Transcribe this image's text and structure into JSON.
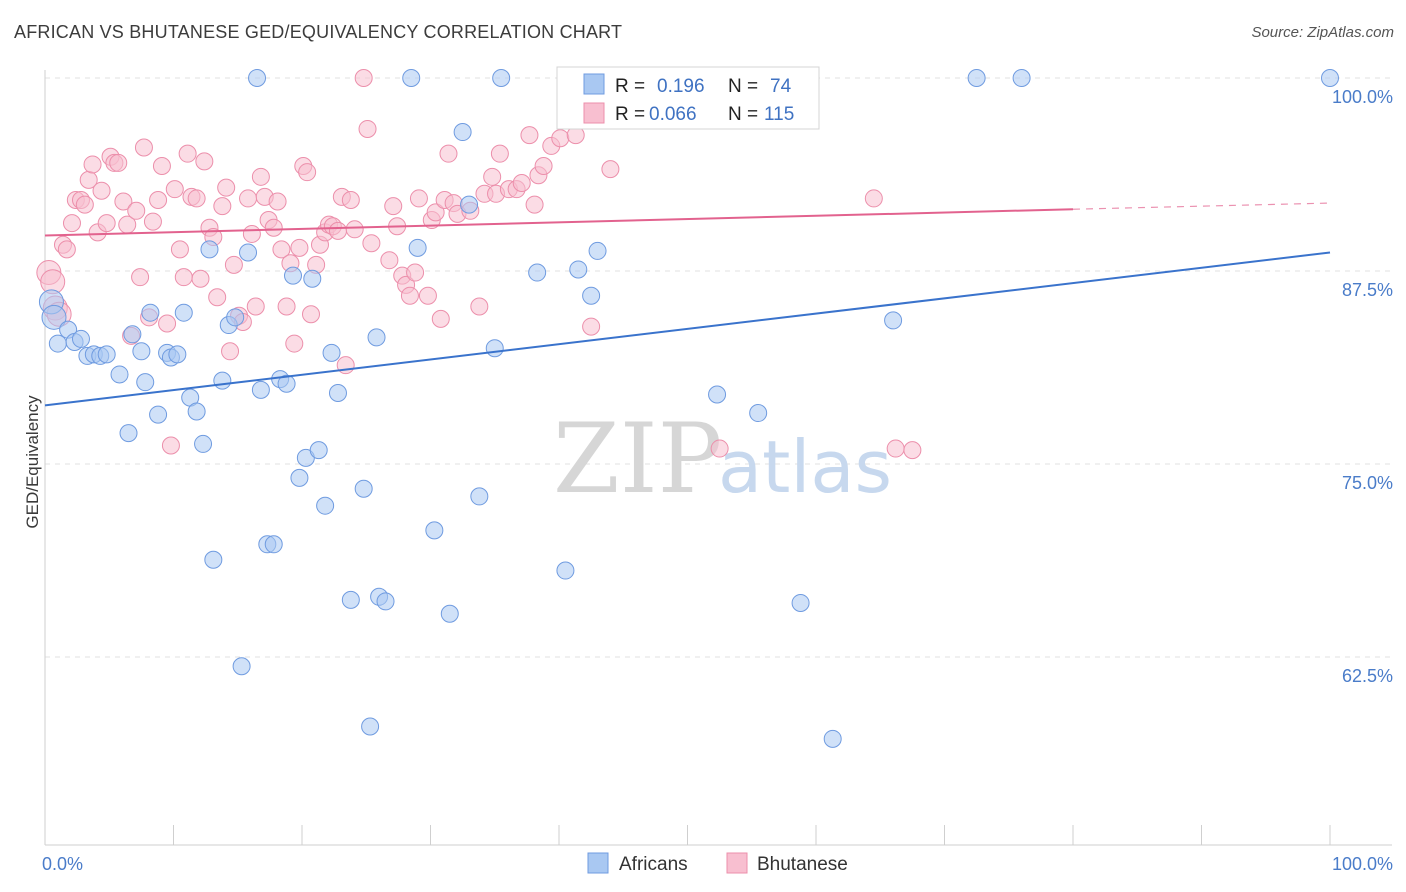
{
  "title": "AFRICAN VS BHUTANESE GED/EQUIVALENCY CORRELATION CHART",
  "source": "Source: ZipAtlas.com",
  "watermark": {
    "zip": "ZIP",
    "atlas": "atlas"
  },
  "colors": {
    "africans_fill": "#a9c8f2",
    "africans_stroke": "#6f9be0",
    "africans_line": "#3a73cc",
    "bhutanese_fill": "#f8bfd0",
    "bhutanese_stroke": "#ec8fab",
    "bhutanese_line": "#e2628e",
    "grid": "#e2e2e2",
    "axis_text": "#4a7cc9"
  },
  "stats_box": {
    "rows": [
      {
        "r_label": "R =",
        "r_value": "0.196",
        "n_label": "N =",
        "n_value": "74"
      },
      {
        "r_label": "R =",
        "r_value": "0.066",
        "n_label": "N =",
        "n_value": "115"
      }
    ]
  },
  "chart_data": {
    "type": "scatter",
    "title": "AFRICAN VS BHUTANESE GED/EQUIVALENCY CORRELATION CHART",
    "xlabel": "",
    "ylabel": "GED/Equivalency",
    "xlim": [
      0,
      100
    ],
    "ylim": [
      51.5,
      102
    ],
    "y_ticks": [
      {
        "value": 100,
        "label": "100.0%"
      },
      {
        "value": 87.5,
        "label": "87.5%"
      },
      {
        "value": 75,
        "label": "75.0%"
      },
      {
        "value": 62.5,
        "label": "62.5%"
      }
    ],
    "x_tick_labels": [
      {
        "value": 0,
        "label": "0.0%"
      },
      {
        "value": 100,
        "label": "100.0%"
      }
    ],
    "grid": true,
    "legend_position": "bottom-center",
    "series": [
      {
        "name": "Africans",
        "r": 0.196,
        "n": 74,
        "trend": {
          "x": [
            0,
            100
          ],
          "y": [
            78.8,
            88.7
          ]
        },
        "points": [
          [
            16.5,
            100
          ],
          [
            28.5,
            100
          ],
          [
            35.5,
            100
          ],
          [
            52.5,
            100
          ],
          [
            72.5,
            100
          ],
          [
            76,
            100
          ],
          [
            100,
            100
          ],
          [
            0.5,
            85.5
          ],
          [
            0.7,
            84.5
          ],
          [
            1,
            82.8
          ],
          [
            1.8,
            83.7
          ],
          [
            2.3,
            82.9
          ],
          [
            2.8,
            83.1
          ],
          [
            3.3,
            82
          ],
          [
            3.8,
            82.1
          ],
          [
            4.3,
            82
          ],
          [
            4.8,
            82.1
          ],
          [
            5.8,
            80.8
          ],
          [
            6.5,
            77
          ],
          [
            6.8,
            83.4
          ],
          [
            7.5,
            82.3
          ],
          [
            7.8,
            80.3
          ],
          [
            8.2,
            84.8
          ],
          [
            8.8,
            78.2
          ],
          [
            9.5,
            82.2
          ],
          [
            9.8,
            81.9
          ],
          [
            10.3,
            82.1
          ],
          [
            10.8,
            84.8
          ],
          [
            11.3,
            79.3
          ],
          [
            11.8,
            78.4
          ],
          [
            12.3,
            76.3
          ],
          [
            12.8,
            88.9
          ],
          [
            13.1,
            68.8
          ],
          [
            13.8,
            80.4
          ],
          [
            14.3,
            84
          ],
          [
            14.8,
            84.5
          ],
          [
            15.3,
            61.9
          ],
          [
            15.8,
            88.7
          ],
          [
            16.8,
            79.8
          ],
          [
            17.3,
            69.8
          ],
          [
            17.8,
            69.8
          ],
          [
            18.3,
            80.5
          ],
          [
            18.8,
            80.2
          ],
          [
            19.3,
            87.2
          ],
          [
            19.8,
            74.1
          ],
          [
            20.3,
            75.4
          ],
          [
            20.8,
            87
          ],
          [
            21.3,
            75.9
          ],
          [
            21.8,
            72.3
          ],
          [
            22.3,
            82.2
          ],
          [
            22.8,
            79.6
          ],
          [
            23.8,
            66.2
          ],
          [
            24.8,
            73.4
          ],
          [
            25.3,
            58
          ],
          [
            25.8,
            83.2
          ],
          [
            26,
            66.4
          ],
          [
            26.5,
            66.1
          ],
          [
            29,
            89
          ],
          [
            30.3,
            70.7
          ],
          [
            31.5,
            65.3
          ],
          [
            32.5,
            96.5
          ],
          [
            33,
            91.8
          ],
          [
            33.8,
            72.9
          ],
          [
            35,
            82.5
          ],
          [
            38.3,
            87.4
          ],
          [
            40.5,
            68.1
          ],
          [
            41.5,
            87.6
          ],
          [
            42.5,
            85.9
          ],
          [
            43,
            88.8
          ],
          [
            52.3,
            79.5
          ],
          [
            55.5,
            78.3
          ],
          [
            58.8,
            66
          ],
          [
            61.3,
            57.2
          ],
          [
            66,
            84.3
          ]
        ]
      },
      {
        "name": "Bhutanese",
        "r": 0.066,
        "n": 115,
        "trend": {
          "x": [
            0,
            80
          ],
          "y": [
            89.8,
            91.5
          ],
          "dashed_to": [
            100,
            91.9
          ]
        },
        "points": [
          [
            0.3,
            87.4
          ],
          [
            0.6,
            86.8
          ],
          [
            0.8,
            85.1
          ],
          [
            1.1,
            84.7
          ],
          [
            1.4,
            89.2
          ],
          [
            1.7,
            88.9
          ],
          [
            2.1,
            90.6
          ],
          [
            2.4,
            92.1
          ],
          [
            2.8,
            92.1
          ],
          [
            3.1,
            91.8
          ],
          [
            3.4,
            93.4
          ],
          [
            3.7,
            94.4
          ],
          [
            4.1,
            90
          ],
          [
            4.4,
            92.7
          ],
          [
            4.8,
            90.6
          ],
          [
            5.1,
            94.9
          ],
          [
            5.4,
            94.5
          ],
          [
            5.7,
            94.5
          ],
          [
            6.1,
            92
          ],
          [
            6.4,
            90.5
          ],
          [
            6.7,
            83.3
          ],
          [
            7.1,
            91.4
          ],
          [
            7.4,
            87.1
          ],
          [
            7.7,
            95.5
          ],
          [
            8.1,
            84.5
          ],
          [
            8.4,
            90.7
          ],
          [
            8.8,
            92.1
          ],
          [
            9.1,
            94.3
          ],
          [
            9.5,
            84.1
          ],
          [
            9.8,
            76.2
          ],
          [
            10.1,
            92.8
          ],
          [
            10.5,
            88.9
          ],
          [
            10.8,
            87.1
          ],
          [
            11.1,
            95.1
          ],
          [
            11.4,
            92.3
          ],
          [
            11.8,
            92.2
          ],
          [
            12.1,
            87
          ],
          [
            12.4,
            94.6
          ],
          [
            12.8,
            90.3
          ],
          [
            13.1,
            89.7
          ],
          [
            13.4,
            85.8
          ],
          [
            13.8,
            91.7
          ],
          [
            14.1,
            92.9
          ],
          [
            14.4,
            82.3
          ],
          [
            14.7,
            87.9
          ],
          [
            15.1,
            84.6
          ],
          [
            15.4,
            84.2
          ],
          [
            15.8,
            92.2
          ],
          [
            16.1,
            89.9
          ],
          [
            16.4,
            85.2
          ],
          [
            16.8,
            93.6
          ],
          [
            17.1,
            92.3
          ],
          [
            17.4,
            90.8
          ],
          [
            17.8,
            90.3
          ],
          [
            18.1,
            92
          ],
          [
            18.4,
            88.9
          ],
          [
            18.8,
            85.2
          ],
          [
            19.1,
            88
          ],
          [
            19.4,
            82.8
          ],
          [
            19.8,
            89
          ],
          [
            20.1,
            94.3
          ],
          [
            20.4,
            93.9
          ],
          [
            20.7,
            84.7
          ],
          [
            21.1,
            87.9
          ],
          [
            21.4,
            89.2
          ],
          [
            21.8,
            90
          ],
          [
            22.1,
            90.5
          ],
          [
            22.4,
            90.4
          ],
          [
            22.8,
            90.1
          ],
          [
            23.1,
            92.3
          ],
          [
            23.4,
            81.4
          ],
          [
            23.8,
            92.1
          ],
          [
            24.1,
            90.2
          ],
          [
            24.8,
            100
          ],
          [
            25.1,
            96.7
          ],
          [
            25.4,
            89.3
          ],
          [
            26.8,
            88.2
          ],
          [
            27.1,
            91.7
          ],
          [
            27.4,
            90.4
          ],
          [
            27.8,
            87.2
          ],
          [
            28.1,
            86.6
          ],
          [
            28.4,
            85.9
          ],
          [
            28.8,
            87.4
          ],
          [
            29.1,
            92.2
          ],
          [
            29.8,
            85.9
          ],
          [
            30.1,
            90.8
          ],
          [
            30.4,
            91.3
          ],
          [
            30.8,
            84.4
          ],
          [
            31.1,
            92.1
          ],
          [
            31.4,
            95.1
          ],
          [
            31.8,
            91.9
          ],
          [
            32.1,
            91.2
          ],
          [
            33.1,
            91.4
          ],
          [
            33.8,
            85.2
          ],
          [
            34.2,
            92.5
          ],
          [
            34.8,
            93.6
          ],
          [
            35.1,
            92.5
          ],
          [
            35.4,
            95.1
          ],
          [
            36.1,
            92.8
          ],
          [
            36.7,
            92.8
          ],
          [
            37.1,
            93.2
          ],
          [
            37.7,
            96.3
          ],
          [
            38.1,
            91.8
          ],
          [
            38.4,
            93.7
          ],
          [
            38.8,
            94.3
          ],
          [
            39.4,
            95.6
          ],
          [
            40.1,
            96.1
          ],
          [
            40.8,
            100
          ],
          [
            41.3,
            96.3
          ],
          [
            42.5,
            83.9
          ],
          [
            44,
            94.1
          ],
          [
            52.5,
            76
          ],
          [
            64.5,
            92.2
          ],
          [
            66.2,
            76
          ],
          [
            67.5,
            75.9
          ]
        ]
      }
    ]
  }
}
